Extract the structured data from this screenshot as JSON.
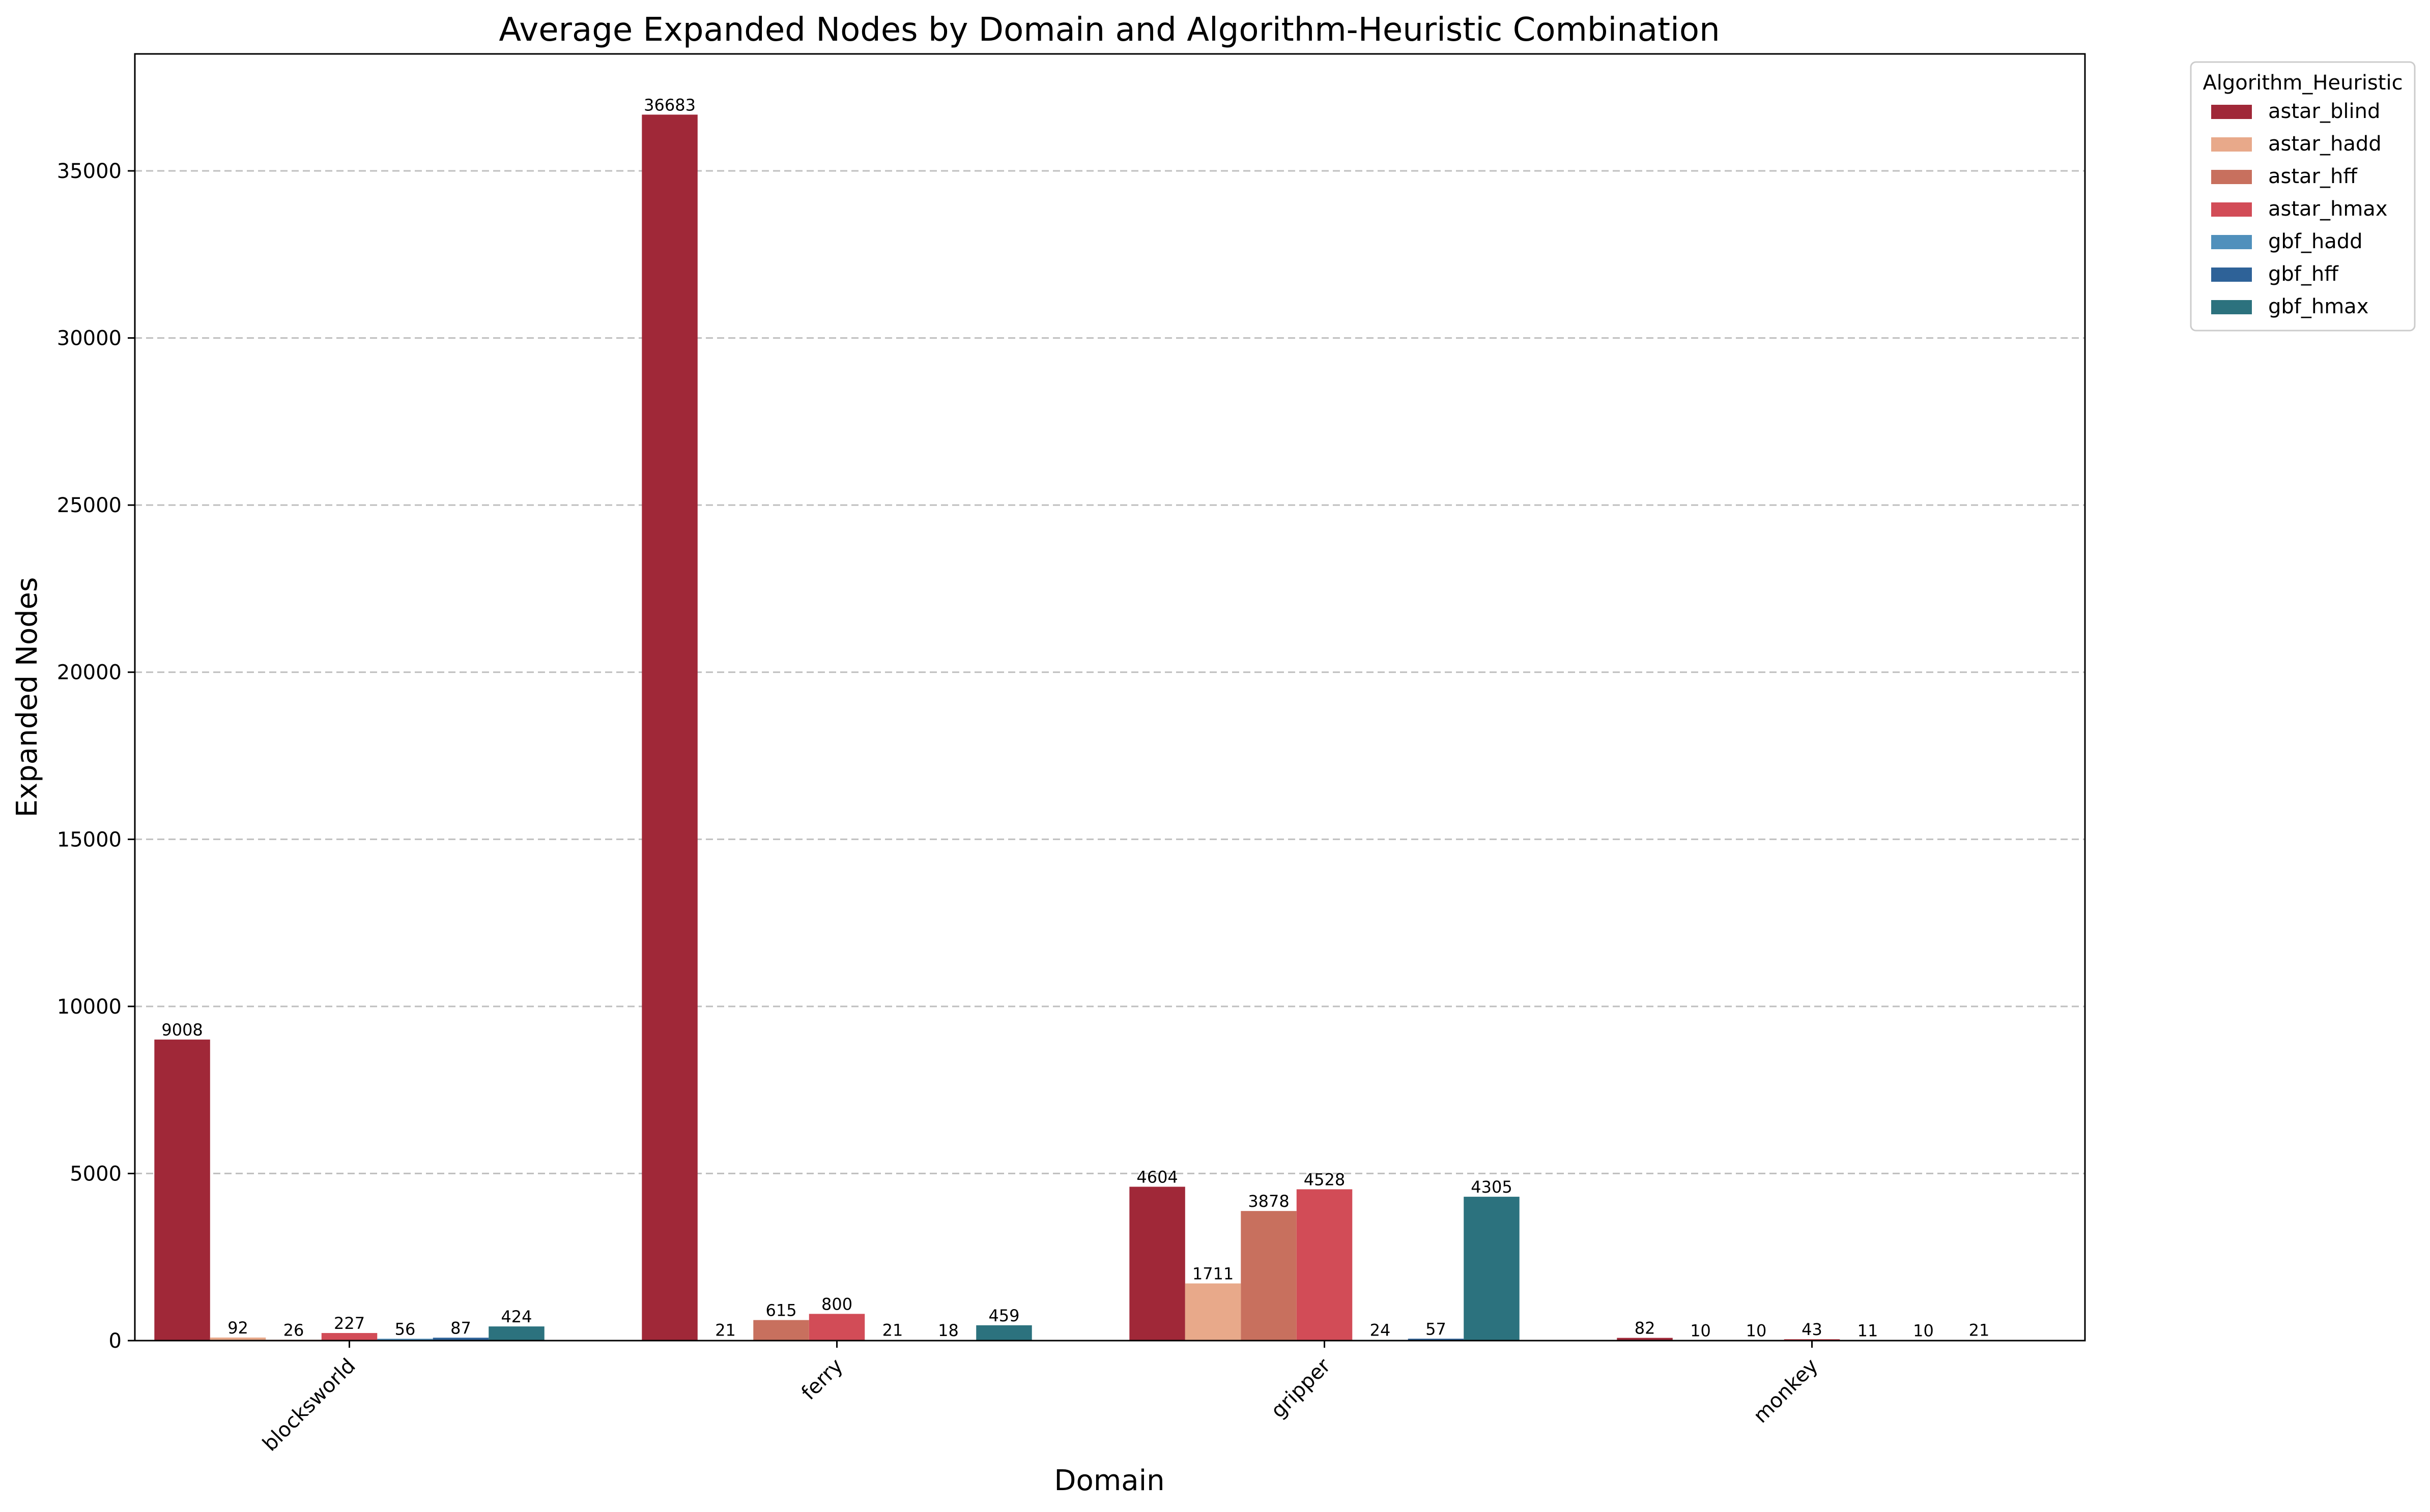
{
  "chart_data": {
    "type": "bar",
    "title": "Average Expanded Nodes by Domain and Algorithm-Heuristic Combination",
    "xlabel": "Domain",
    "ylabel": "Expanded Nodes",
    "categories": [
      "blocksworld",
      "ferry",
      "gripper",
      "monkey"
    ],
    "ylim": [
      0,
      38500
    ],
    "yticks": [
      0,
      5000,
      10000,
      15000,
      20000,
      25000,
      30000,
      35000
    ],
    "grid": "horizontal-dashed",
    "legend_title": "Algorithm_Heuristic",
    "legend_position": "outside-top-right",
    "series": [
      {
        "name": "astar_blind",
        "color": "#a02838",
        "values": [
          9008,
          36683,
          4604,
          82
        ]
      },
      {
        "name": "astar_hadd",
        "color": "#e8a98a",
        "values": [
          92,
          21,
          1711,
          10
        ]
      },
      {
        "name": "astar_hff",
        "color": "#c8705e",
        "values": [
          26,
          615,
          3878,
          10
        ]
      },
      {
        "name": "astar_hmax",
        "color": "#d24c57",
        "values": [
          227,
          800,
          4528,
          43
        ]
      },
      {
        "name": "gbf_hadd",
        "color": "#5090bc",
        "values": [
          56,
          21,
          24,
          11
        ]
      },
      {
        "name": "gbf_hff",
        "color": "#2e6298",
        "values": [
          87,
          18,
          57,
          10
        ]
      },
      {
        "name": "gbf_hmax",
        "color": "#2c727e",
        "values": [
          424,
          459,
          4305,
          21
        ]
      }
    ]
  }
}
